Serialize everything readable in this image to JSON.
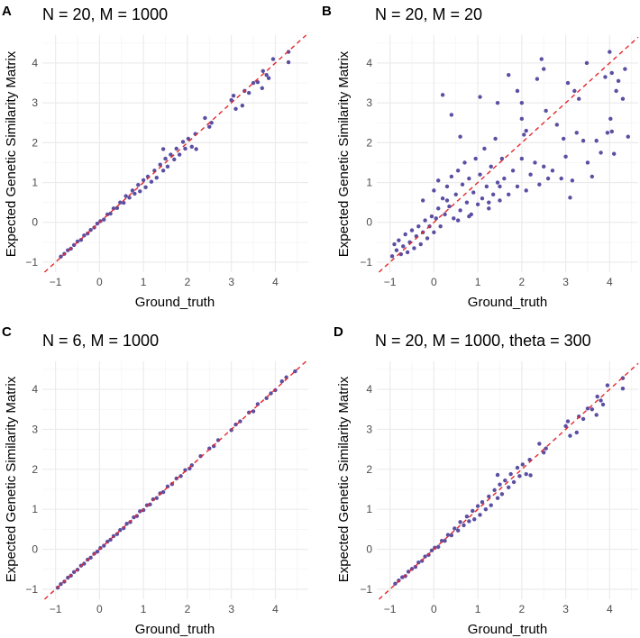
{
  "colors": {
    "point": "#5a4fa2",
    "refline": "#e8262b",
    "grid_major": "#ebebeb",
    "grid_minor": "#f4f4f4"
  },
  "chart_data": [
    {
      "type": "scatter",
      "tag": "A",
      "title": "N = 20, M = 1000",
      "xlabel": "Ground_truth",
      "ylabel": "Expected Genetic Similarity Matrix",
      "xticks": [
        -1,
        0,
        1,
        2,
        3,
        4
      ],
      "yticks": [
        -1,
        0,
        1,
        2,
        3,
        4
      ],
      "xlim": [
        -1.3,
        4.75
      ],
      "ylim": [
        -1.25,
        4.7
      ],
      "grid": true,
      "reference_line": {
        "type": "y = x",
        "style": "dashed"
      },
      "points": [
        [
          -0.88,
          -0.86
        ],
        [
          -0.8,
          -0.79
        ],
        [
          -0.72,
          -0.7
        ],
        [
          -0.65,
          -0.66
        ],
        [
          -0.58,
          -0.57
        ],
        [
          -0.5,
          -0.48
        ],
        [
          -0.42,
          -0.44
        ],
        [
          -0.35,
          -0.33
        ],
        [
          -0.27,
          -0.28
        ],
        [
          -0.2,
          -0.19
        ],
        [
          -0.12,
          -0.13
        ],
        [
          -0.05,
          -0.03
        ],
        [
          0.02,
          0.03
        ],
        [
          0.1,
          0.07
        ],
        [
          0.18,
          0.2
        ],
        [
          0.25,
          0.22
        ],
        [
          0.32,
          0.35
        ],
        [
          0.4,
          0.36
        ],
        [
          0.47,
          0.5
        ],
        [
          0.55,
          0.49
        ],
        [
          0.6,
          0.66
        ],
        [
          0.68,
          0.62
        ],
        [
          0.75,
          0.8
        ],
        [
          0.8,
          0.72
        ],
        [
          0.88,
          0.94
        ],
        [
          0.92,
          0.78
        ],
        [
          1.0,
          1.06
        ],
        [
          1.05,
          0.88
        ],
        [
          1.1,
          1.15
        ],
        [
          1.18,
          1.02
        ],
        [
          1.25,
          1.3
        ],
        [
          1.3,
          1.12
        ],
        [
          1.38,
          1.45
        ],
        [
          1.45,
          1.3
        ],
        [
          1.5,
          1.6
        ],
        [
          1.55,
          1.4
        ],
        [
          1.62,
          1.7
        ],
        [
          1.7,
          1.58
        ],
        [
          1.75,
          1.85
        ],
        [
          1.82,
          1.7
        ],
        [
          1.9,
          2.02
        ],
        [
          1.95,
          1.85
        ],
        [
          2.02,
          2.1
        ],
        [
          2.1,
          1.9
        ],
        [
          2.18,
          2.22
        ],
        [
          2.2,
          1.84
        ],
        [
          1.45,
          1.84
        ],
        [
          2.4,
          2.62
        ],
        [
          2.5,
          2.4
        ],
        [
          2.55,
          2.5
        ],
        [
          3.0,
          3.07
        ],
        [
          3.05,
          3.18
        ],
        [
          3.1,
          2.85
        ],
        [
          3.25,
          2.93
        ],
        [
          3.3,
          3.3
        ],
        [
          3.4,
          3.25
        ],
        [
          3.5,
          3.5
        ],
        [
          3.6,
          3.52
        ],
        [
          3.7,
          3.37
        ],
        [
          3.72,
          3.8
        ],
        [
          3.8,
          3.7
        ],
        [
          3.85,
          3.62
        ],
        [
          3.95,
          4.1
        ],
        [
          4.3,
          4.02
        ],
        [
          4.3,
          4.28
        ]
      ]
    },
    {
      "type": "scatter",
      "tag": "B",
      "title": "N = 20, M = 20",
      "xlabel": "Ground_truth",
      "ylabel": "Expected Genetic Similarity Matrix",
      "xticks": [
        -1,
        0,
        1,
        2,
        3,
        4
      ],
      "yticks": [
        -1,
        0,
        1,
        2,
        3,
        4
      ],
      "xlim": [
        -1.3,
        4.65
      ],
      "ylim": [
        -1.25,
        4.7
      ],
      "grid": true,
      "reference_line": {
        "type": "y = x",
        "style": "dashed"
      },
      "points": [
        [
          -0.95,
          -0.85
        ],
        [
          -0.9,
          -0.55
        ],
        [
          -0.85,
          -0.7
        ],
        [
          -0.8,
          -0.45
        ],
        [
          -0.75,
          -0.8
        ],
        [
          -0.7,
          -0.6
        ],
        [
          -0.65,
          -0.3
        ],
        [
          -0.6,
          -0.75
        ],
        [
          -0.55,
          -0.5
        ],
        [
          -0.5,
          -0.2
        ],
        [
          -0.45,
          -0.65
        ],
        [
          -0.4,
          -0.35
        ],
        [
          -0.35,
          -0.1
        ],
        [
          -0.3,
          -0.55
        ],
        [
          -0.25,
          -0.25
        ],
        [
          -0.2,
          0.05
        ],
        [
          -0.15,
          -0.4
        ],
        [
          -0.1,
          -0.1
        ],
        [
          -0.05,
          0.15
        ],
        [
          0,
          -0.25
        ],
        [
          0.05,
          0.1
        ],
        [
          0.1,
          0.35
        ],
        [
          0.15,
          -0.1
        ],
        [
          0.2,
          0.6
        ],
        [
          0.25,
          0.2
        ],
        [
          0.3,
          0.9
        ],
        [
          0.35,
          0.4
        ],
        [
          0.4,
          1.15
        ],
        [
          0.45,
          0.1
        ],
        [
          0.5,
          0.7
        ],
        [
          0.55,
          1.3
        ],
        [
          0.6,
          0.3
        ],
        [
          0.65,
          0.95
        ],
        [
          0.7,
          1.5
        ],
        [
          0.75,
          0.5
        ],
        [
          0.8,
          1.1
        ],
        [
          0.85,
          0.2
        ],
        [
          0.9,
          0.75
        ],
        [
          0.95,
          1.6
        ],
        [
          1.0,
          0.45
        ],
        [
          1.05,
          1.2
        ],
        [
          1.1,
          0.6
        ],
        [
          1.15,
          1.85
        ],
        [
          1.2,
          0.9
        ],
        [
          1.25,
          0.35
        ],
        [
          1.3,
          1.4
        ],
        [
          1.35,
          0.7
        ],
        [
          1.4,
          2.1
        ],
        [
          1.45,
          1.0
        ],
        [
          1.5,
          0.55
        ],
        [
          1.55,
          1.6
        ],
        [
          1.6,
          1.1
        ],
        [
          1.7,
          0.7
        ],
        [
          1.8,
          1.3
        ],
        [
          1.9,
          0.9
        ],
        [
          2.0,
          1.6
        ],
        [
          2.05,
          2.2
        ],
        [
          2.1,
          0.8
        ],
        [
          2.2,
          1.2
        ],
        [
          2.3,
          1.5
        ],
        [
          2.4,
          0.95
        ],
        [
          2.5,
          1.4
        ],
        [
          2.6,
          1.1
        ],
        [
          2.7,
          1.3
        ],
        [
          2.0,
          2.6
        ],
        [
          2.1,
          2.3
        ],
        [
          1.9,
          3.3
        ],
        [
          2.0,
          3.0
        ],
        [
          1.7,
          3.7
        ],
        [
          2.45,
          4.1
        ],
        [
          2.5,
          3.85
        ],
        [
          2.35,
          3.6
        ],
        [
          1.05,
          3.15
        ],
        [
          0.2,
          3.2
        ],
        [
          0.4,
          2.7
        ],
        [
          1.45,
          3.0
        ],
        [
          2.8,
          2.45
        ],
        [
          2.9,
          1.1
        ],
        [
          3.0,
          1.65
        ],
        [
          3.05,
          3.5
        ],
        [
          3.1,
          0.62
        ],
        [
          3.15,
          1.05
        ],
        [
          3.2,
          3.3
        ],
        [
          3.25,
          2.25
        ],
        [
          3.3,
          3.1
        ],
        [
          3.4,
          2.05
        ],
        [
          3.5,
          1.5
        ],
        [
          3.48,
          4.0
        ],
        [
          3.6,
          1.15
        ],
        [
          3.7,
          2.05
        ],
        [
          3.8,
          1.75
        ],
        [
          3.9,
          3.65
        ],
        [
          4.0,
          4.28
        ],
        [
          4.02,
          2.6
        ],
        [
          4.05,
          3.75
        ],
        [
          4.1,
          1.72
        ],
        [
          4.15,
          3.3
        ],
        [
          4.2,
          3.55
        ],
        [
          4.3,
          3.1
        ],
        [
          4.35,
          3.85
        ],
        [
          4.42,
          2.15
        ],
        [
          3.95,
          2.25
        ],
        [
          4.05,
          2.28
        ],
        [
          2.95,
          2.1
        ],
        [
          2.55,
          2.8
        ],
        [
          0.6,
          2.15
        ],
        [
          0.3,
          0.55
        ],
        [
          -0.25,
          0.55
        ],
        [
          0.0,
          0.8
        ],
        [
          0.1,
          1.05
        ],
        [
          0.55,
          0.05
        ],
        [
          0.8,
          0.15
        ],
        [
          1.25,
          0.5
        ],
        [
          1.5,
          0.9
        ]
      ]
    },
    {
      "type": "scatter",
      "tag": "C",
      "title": "N = 6, M = 1000",
      "xlabel": "Ground_truth",
      "ylabel": "Expected Genetic Similarity Matrix",
      "xticks": [
        -1,
        0,
        1,
        2,
        3,
        4
      ],
      "yticks": [
        -1,
        0,
        1,
        2,
        3,
        4
      ],
      "xlim": [
        -1.3,
        4.75
      ],
      "ylim": [
        -1.25,
        4.7
      ],
      "grid": true,
      "reference_line": {
        "type": "y = x",
        "style": "dashed"
      },
      "points": [
        [
          -0.95,
          -0.96
        ],
        [
          -0.88,
          -0.87
        ],
        [
          -0.8,
          -0.81
        ],
        [
          -0.72,
          -0.71
        ],
        [
          -0.65,
          -0.66
        ],
        [
          -0.58,
          -0.57
        ],
        [
          -0.5,
          -0.51
        ],
        [
          -0.42,
          -0.41
        ],
        [
          -0.35,
          -0.36
        ],
        [
          -0.27,
          -0.26
        ],
        [
          -0.2,
          -0.21
        ],
        [
          -0.12,
          -0.11
        ],
        [
          -0.05,
          -0.06
        ],
        [
          0.02,
          0.03
        ],
        [
          0.1,
          0.09
        ],
        [
          0.18,
          0.19
        ],
        [
          0.25,
          0.24
        ],
        [
          0.32,
          0.33
        ],
        [
          0.4,
          0.38
        ],
        [
          0.47,
          0.48
        ],
        [
          0.55,
          0.53
        ],
        [
          0.62,
          0.64
        ],
        [
          0.7,
          0.68
        ],
        [
          0.78,
          0.8
        ],
        [
          0.85,
          0.83
        ],
        [
          0.92,
          0.95
        ],
        [
          1.0,
          0.98
        ],
        [
          1.08,
          1.1
        ],
        [
          1.15,
          1.12
        ],
        [
          1.22,
          1.25
        ],
        [
          1.3,
          1.28
        ],
        [
          1.38,
          1.4
        ],
        [
          1.45,
          1.43
        ],
        [
          1.55,
          1.57
        ],
        [
          1.65,
          1.63
        ],
        [
          1.75,
          1.77
        ],
        [
          1.85,
          1.83
        ],
        [
          1.95,
          1.98
        ],
        [
          2.05,
          2.02
        ],
        [
          2.1,
          2.1
        ],
        [
          2.3,
          2.33
        ],
        [
          2.5,
          2.52
        ],
        [
          2.6,
          2.58
        ],
        [
          2.7,
          2.73
        ],
        [
          3.0,
          2.98
        ],
        [
          3.1,
          3.12
        ],
        [
          3.2,
          3.2
        ],
        [
          3.4,
          3.42
        ],
        [
          3.5,
          3.45
        ],
        [
          3.6,
          3.63
        ],
        [
          3.8,
          3.78
        ],
        [
          3.9,
          3.9
        ],
        [
          4.0,
          3.98
        ],
        [
          4.15,
          4.2
        ],
        [
          4.25,
          4.3
        ],
        [
          4.45,
          4.45
        ]
      ]
    },
    {
      "type": "scatter",
      "tag": "D",
      "title": "N = 20, M = 1000, theta = 300",
      "xlabel": "Ground_truth",
      "ylabel": "Expected Genetic Similarity Matrix",
      "xticks": [
        -1,
        0,
        1,
        2,
        3,
        4
      ],
      "yticks": [
        -1,
        0,
        1,
        2,
        3,
        4
      ],
      "xlim": [
        -1.3,
        4.65
      ],
      "ylim": [
        -1.25,
        4.7
      ],
      "grid": true,
      "reference_line": {
        "type": "y = x",
        "style": "dashed"
      },
      "points": [
        [
          -0.88,
          -0.86
        ],
        [
          -0.8,
          -0.78
        ],
        [
          -0.72,
          -0.7
        ],
        [
          -0.65,
          -0.67
        ],
        [
          -0.58,
          -0.56
        ],
        [
          -0.5,
          -0.49
        ],
        [
          -0.42,
          -0.44
        ],
        [
          -0.35,
          -0.33
        ],
        [
          -0.27,
          -0.29
        ],
        [
          -0.2,
          -0.18
        ],
        [
          -0.12,
          -0.14
        ],
        [
          -0.05,
          -0.03
        ],
        [
          0.02,
          0.04
        ],
        [
          0.1,
          0.06
        ],
        [
          0.18,
          0.21
        ],
        [
          0.25,
          0.21
        ],
        [
          0.32,
          0.36
        ],
        [
          0.4,
          0.35
        ],
        [
          0.47,
          0.52
        ],
        [
          0.55,
          0.47
        ],
        [
          0.6,
          0.68
        ],
        [
          0.68,
          0.6
        ],
        [
          0.75,
          0.82
        ],
        [
          0.8,
          0.7
        ],
        [
          0.88,
          0.96
        ],
        [
          0.92,
          0.75
        ],
        [
          1.0,
          1.08
        ],
        [
          1.05,
          0.86
        ],
        [
          1.1,
          1.18
        ],
        [
          1.18,
          1.0
        ],
        [
          1.25,
          1.32
        ],
        [
          1.3,
          1.1
        ],
        [
          1.38,
          1.48
        ],
        [
          1.45,
          1.28
        ],
        [
          1.5,
          1.62
        ],
        [
          1.55,
          1.38
        ],
        [
          1.62,
          1.72
        ],
        [
          1.7,
          1.55
        ],
        [
          1.75,
          1.88
        ],
        [
          1.82,
          1.68
        ],
        [
          1.9,
          2.04
        ],
        [
          1.95,
          1.83
        ],
        [
          2.02,
          2.12
        ],
        [
          2.1,
          1.88
        ],
        [
          2.18,
          2.24
        ],
        [
          2.2,
          1.85
        ],
        [
          1.45,
          1.86
        ],
        [
          2.4,
          2.64
        ],
        [
          2.5,
          2.42
        ],
        [
          2.55,
          2.52
        ],
        [
          3.0,
          3.08
        ],
        [
          3.05,
          3.2
        ],
        [
          3.1,
          2.84
        ],
        [
          3.25,
          2.92
        ],
        [
          3.3,
          3.32
        ],
        [
          3.4,
          3.26
        ],
        [
          3.5,
          3.52
        ],
        [
          3.6,
          3.5
        ],
        [
          3.7,
          3.36
        ],
        [
          3.72,
          3.82
        ],
        [
          3.8,
          3.72
        ],
        [
          3.85,
          3.62
        ],
        [
          3.95,
          4.1
        ],
        [
          4.3,
          4.02
        ],
        [
          4.3,
          4.28
        ]
      ]
    }
  ]
}
